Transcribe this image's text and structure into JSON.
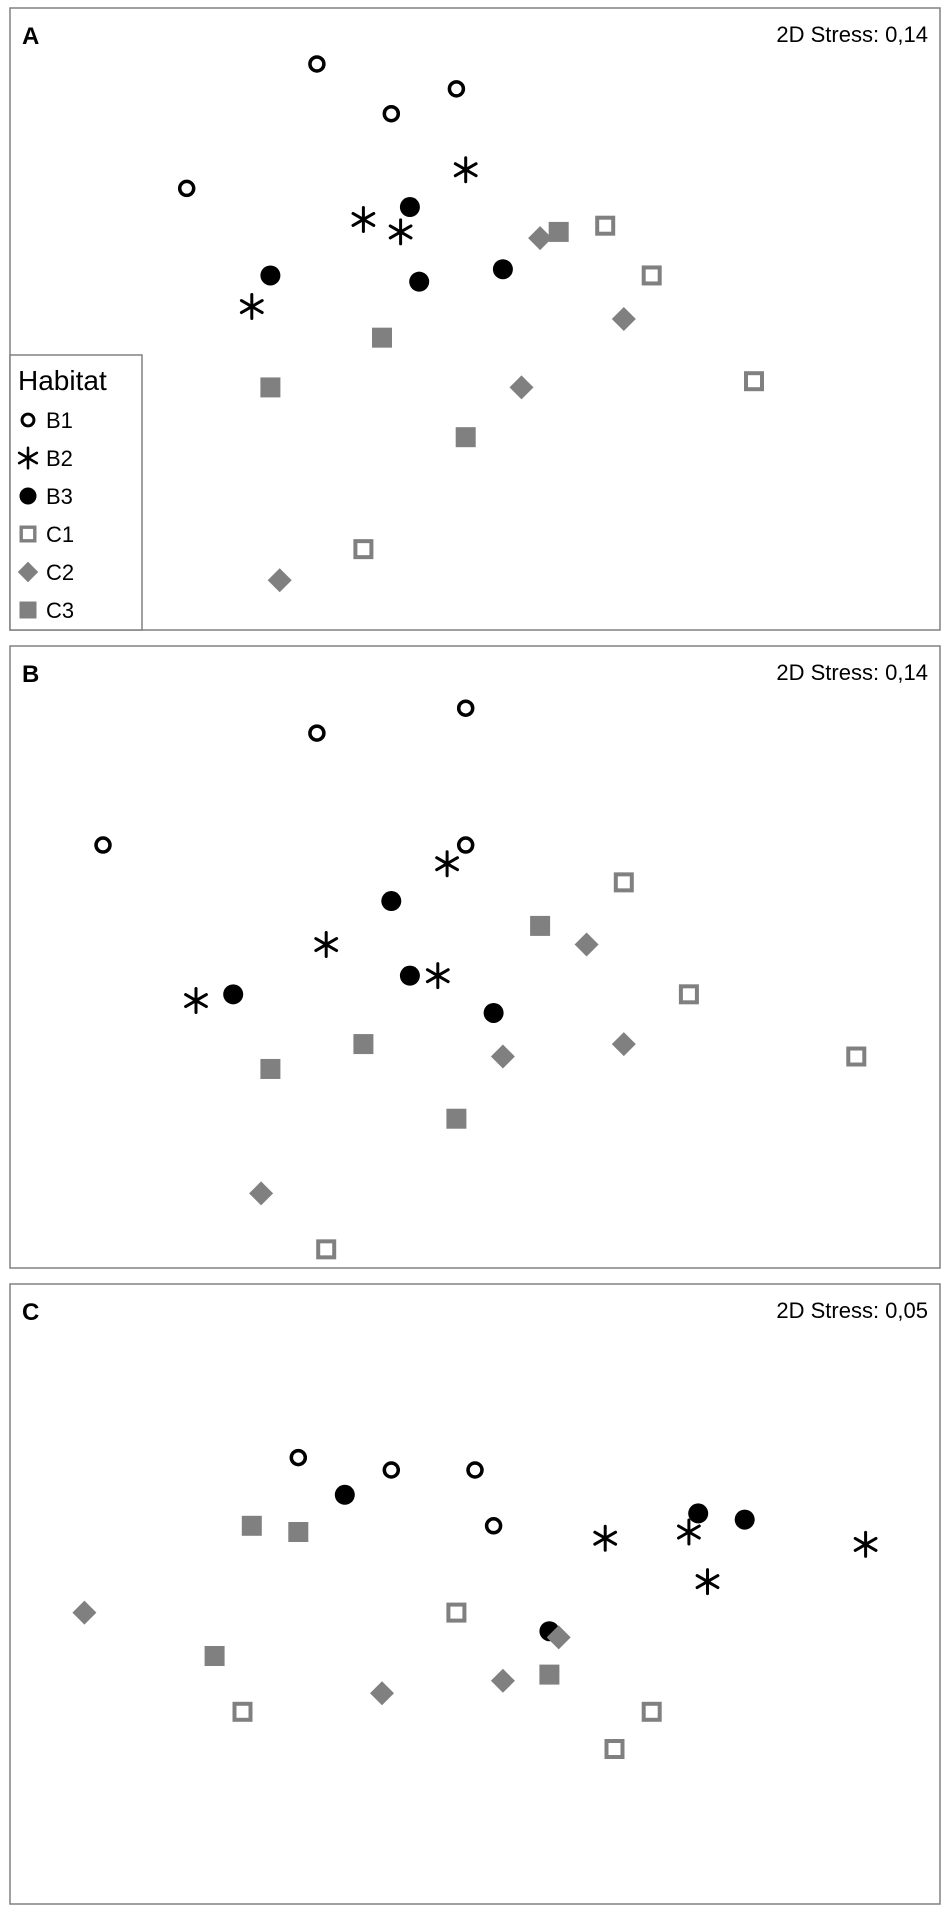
{
  "styles": {
    "B1": {
      "label": "B1",
      "shape": "circle-open",
      "color": "#000000"
    },
    "B2": {
      "label": "B2",
      "shape": "asterisk",
      "color": "#000000"
    },
    "B3": {
      "label": "B3",
      "shape": "circle-filled",
      "color": "#000000"
    },
    "C1": {
      "label": "C1",
      "shape": "square-open",
      "color": "#808080"
    },
    "C2": {
      "label": "C2",
      "shape": "diamond-filled",
      "color": "#808080"
    },
    "C3": {
      "label": "C3",
      "shape": "square-filled",
      "color": "#808080"
    }
  },
  "legend": {
    "title": "Habitat",
    "entries": [
      "B1",
      "B2",
      "B3",
      "C1",
      "C2",
      "C3"
    ]
  },
  "chart_data": [
    {
      "type": "scatter",
      "panel": "A",
      "stress_label": "2D Stress: 0,14",
      "xlim": [
        0,
        100
      ],
      "ylim": [
        0,
        100
      ],
      "grid": false,
      "legend": "left",
      "series": [
        {
          "name": "B1",
          "points": [
            [
              19,
              71
            ],
            [
              33,
              91
            ],
            [
              41,
              83
            ],
            [
              48,
              87
            ]
          ]
        },
        {
          "name": "B2",
          "points": [
            [
              26,
              52
            ],
            [
              38,
              66
            ],
            [
              42,
              64
            ],
            [
              49,
              74
            ]
          ]
        },
        {
          "name": "B3",
          "points": [
            [
              28,
              57
            ],
            [
              43,
              68
            ],
            [
              44,
              56
            ],
            [
              53,
              58
            ]
          ]
        },
        {
          "name": "C1",
          "points": [
            [
              38,
              13
            ],
            [
              64,
              65
            ],
            [
              69,
              57
            ],
            [
              80,
              40
            ]
          ]
        },
        {
          "name": "C2",
          "points": [
            [
              29,
              8
            ],
            [
              55,
              39
            ],
            [
              57,
              63
            ],
            [
              66,
              50
            ]
          ]
        },
        {
          "name": "C3",
          "points": [
            [
              28,
              39
            ],
            [
              40,
              47
            ],
            [
              49,
              31
            ],
            [
              59,
              64
            ]
          ]
        }
      ]
    },
    {
      "type": "scatter",
      "panel": "B",
      "stress_label": "2D Stress: 0,14",
      "xlim": [
        0,
        100
      ],
      "ylim": [
        0,
        100
      ],
      "grid": false,
      "series": [
        {
          "name": "B1",
          "points": [
            [
              10,
              68
            ],
            [
              33,
              86
            ],
            [
              49,
              90
            ],
            [
              49,
              68
            ]
          ]
        },
        {
          "name": "B2",
          "points": [
            [
              20,
              43
            ],
            [
              34,
              52
            ],
            [
              47,
              65
            ],
            [
              46,
              47
            ]
          ]
        },
        {
          "name": "B3",
          "points": [
            [
              24,
              44
            ],
            [
              41,
              59
            ],
            [
              43,
              47
            ],
            [
              52,
              41
            ]
          ]
        },
        {
          "name": "C1",
          "points": [
            [
              34,
              3
            ],
            [
              66,
              62
            ],
            [
              73,
              44
            ],
            [
              91,
              34
            ]
          ]
        },
        {
          "name": "C2",
          "points": [
            [
              27,
              12
            ],
            [
              53,
              34
            ],
            [
              62,
              52
            ],
            [
              66,
              36
            ]
          ]
        },
        {
          "name": "C3",
          "points": [
            [
              28,
              32
            ],
            [
              38,
              36
            ],
            [
              48,
              24
            ],
            [
              57,
              55
            ]
          ]
        }
      ]
    },
    {
      "type": "scatter",
      "panel": "C",
      "stress_label": "2D Stress: 0,05",
      "xlim": [
        0,
        100
      ],
      "ylim": [
        0,
        100
      ],
      "grid": false,
      "series": [
        {
          "name": "B1",
          "points": [
            [
              31,
              72
            ],
            [
              41,
              70
            ],
            [
              50,
              70
            ],
            [
              52,
              61
            ]
          ]
        },
        {
          "name": "B2",
          "points": [
            [
              64,
              59
            ],
            [
              73,
              60
            ],
            [
              75,
              52
            ],
            [
              92,
              58
            ]
          ]
        },
        {
          "name": "B3",
          "points": [
            [
              36,
              66
            ],
            [
              58,
              44
            ],
            [
              74,
              63
            ],
            [
              79,
              62
            ]
          ]
        },
        {
          "name": "C1",
          "points": [
            [
              25,
              31
            ],
            [
              48,
              47
            ],
            [
              65,
              25
            ],
            [
              69,
              31
            ]
          ]
        },
        {
          "name": "C2",
          "points": [
            [
              8,
              47
            ],
            [
              40,
              34
            ],
            [
              53,
              36
            ],
            [
              59,
              43
            ]
          ]
        },
        {
          "name": "C3",
          "points": [
            [
              22,
              40
            ],
            [
              26,
              61
            ],
            [
              31,
              60
            ],
            [
              58,
              37
            ]
          ]
        }
      ]
    }
  ]
}
